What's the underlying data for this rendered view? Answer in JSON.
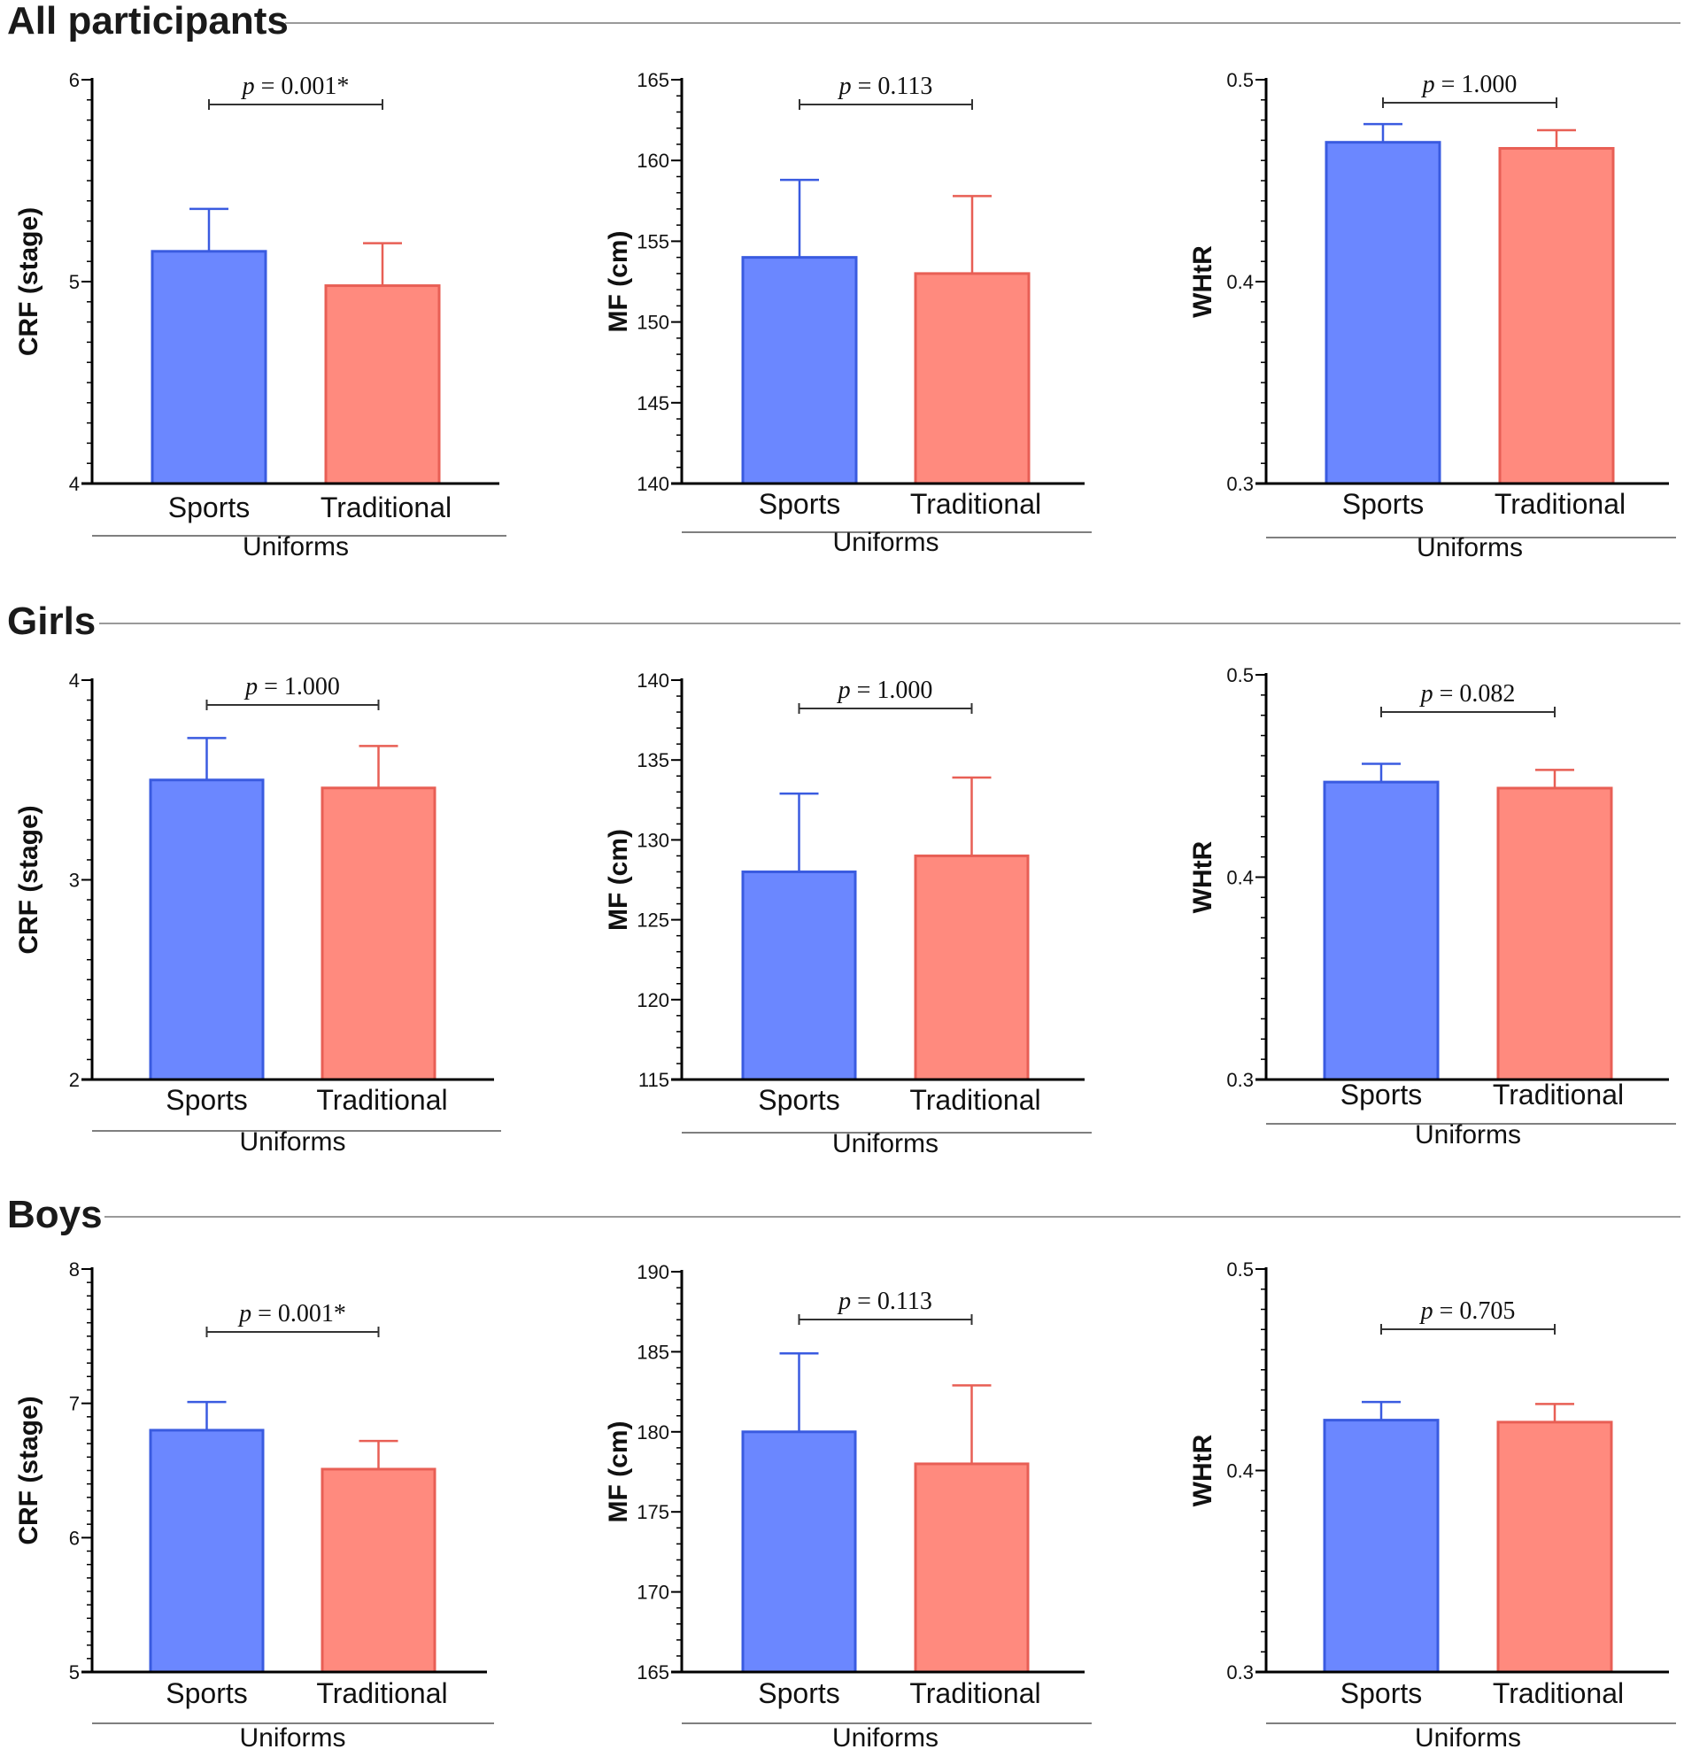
{
  "colors": {
    "sports_fill": "#6b87ff",
    "sports_edge": "#3a5be0",
    "traditional_fill": "#ff8a7e",
    "traditional_edge": "#e85f55"
  },
  "sections": [
    {
      "title": "All participants"
    },
    {
      "title": "Girls"
    },
    {
      "title": "Boys"
    }
  ],
  "chart_data": [
    {
      "type": "bar",
      "section": "All participants",
      "ylabel": "CRF (stage)",
      "xlabel": "Uniforms",
      "categories": [
        "Sports",
        "Traditional"
      ],
      "values": [
        5.15,
        4.98
      ],
      "errors": [
        0.21,
        0.21
      ],
      "ylim": [
        4,
        6
      ],
      "major_ticks": [
        4,
        5,
        6
      ],
      "minor_step": 0.1,
      "p_label": "p =",
      "p_value": "0.001*"
    },
    {
      "type": "bar",
      "section": "All participants",
      "ylabel": "MF (cm)",
      "xlabel": "Uniforms",
      "categories": [
        "Sports",
        "Traditional"
      ],
      "values": [
        154,
        153
      ],
      "errors": [
        4.8,
        4.8
      ],
      "ylim": [
        140,
        165
      ],
      "major_ticks": [
        140,
        145,
        150,
        155,
        160,
        165
      ],
      "minor_step": 1,
      "p_label": "p =",
      "p_value": "0.113"
    },
    {
      "type": "bar",
      "section": "All participants",
      "ylabel": "WHtR",
      "xlabel": "Uniforms",
      "categories": [
        "Sports",
        "Traditional"
      ],
      "values": [
        0.469,
        0.466
      ],
      "errors": [
        0.009,
        0.009
      ],
      "ylim": [
        0.3,
        0.5
      ],
      "major_ticks": [
        0.3,
        0.4,
        0.5
      ],
      "minor_step": 0.01,
      "p_label": "p =",
      "p_value": "1.000"
    },
    {
      "type": "bar",
      "section": "Girls",
      "ylabel": "CRF (stage)",
      "xlabel": "Uniforms",
      "categories": [
        "Sports",
        "Traditional"
      ],
      "values": [
        3.5,
        3.46
      ],
      "errors": [
        0.21,
        0.21
      ],
      "ylim": [
        2,
        4
      ],
      "major_ticks": [
        2,
        3,
        4
      ],
      "minor_step": 0.1,
      "p_label": "p =",
      "p_value": "1.000"
    },
    {
      "type": "bar",
      "section": "Girls",
      "ylabel": "MF (cm)",
      "xlabel": "Uniforms",
      "categories": [
        "Sports",
        "Traditional"
      ],
      "values": [
        128,
        129
      ],
      "errors": [
        4.9,
        4.9
      ],
      "ylim": [
        115,
        140
      ],
      "major_ticks": [
        115,
        120,
        125,
        130,
        135,
        140
      ],
      "minor_step": 1,
      "p_label": "p =",
      "p_value": "1.000"
    },
    {
      "type": "bar",
      "section": "Girls",
      "ylabel": "WHtR",
      "xlabel": "Uniforms",
      "categories": [
        "Sports",
        "Traditional"
      ],
      "values": [
        0.447,
        0.444
      ],
      "errors": [
        0.009,
        0.009
      ],
      "ylim": [
        0.3,
        0.5
      ],
      "major_ticks": [
        0.3,
        0.4,
        0.5
      ],
      "minor_step": 0.01,
      "p_label": "p =",
      "p_value": "0.082"
    },
    {
      "type": "bar",
      "section": "Boys",
      "ylabel": "CRF (stage)",
      "xlabel": "Uniforms",
      "categories": [
        "Sports",
        "Traditional"
      ],
      "values": [
        6.8,
        6.51
      ],
      "errors": [
        0.21,
        0.21
      ],
      "ylim": [
        5,
        8
      ],
      "major_ticks": [
        5,
        6,
        7,
        8
      ],
      "minor_step": 0.1,
      "p_label": "p =",
      "p_value": "0.001*"
    },
    {
      "type": "bar",
      "section": "Boys",
      "ylabel": "MF (cm)",
      "xlabel": "Uniforms",
      "categories": [
        "Sports",
        "Traditional"
      ],
      "values": [
        180,
        178
      ],
      "errors": [
        4.9,
        4.9
      ],
      "ylim": [
        165,
        190
      ],
      "major_ticks": [
        165,
        170,
        175,
        180,
        185,
        190
      ],
      "minor_step": 1,
      "p_label": "p =",
      "p_value": "0.113"
    },
    {
      "type": "bar",
      "section": "Boys",
      "ylabel": "WHtR",
      "xlabel": "Uniforms",
      "categories": [
        "Sports",
        "Traditional"
      ],
      "values": [
        0.425,
        0.424
      ],
      "errors": [
        0.009,
        0.009
      ],
      "ylim": [
        0.3,
        0.5
      ],
      "major_ticks": [
        0.3,
        0.4,
        0.5
      ],
      "minor_step": 0.01,
      "p_label": "p =",
      "p_value": "0.705"
    }
  ]
}
